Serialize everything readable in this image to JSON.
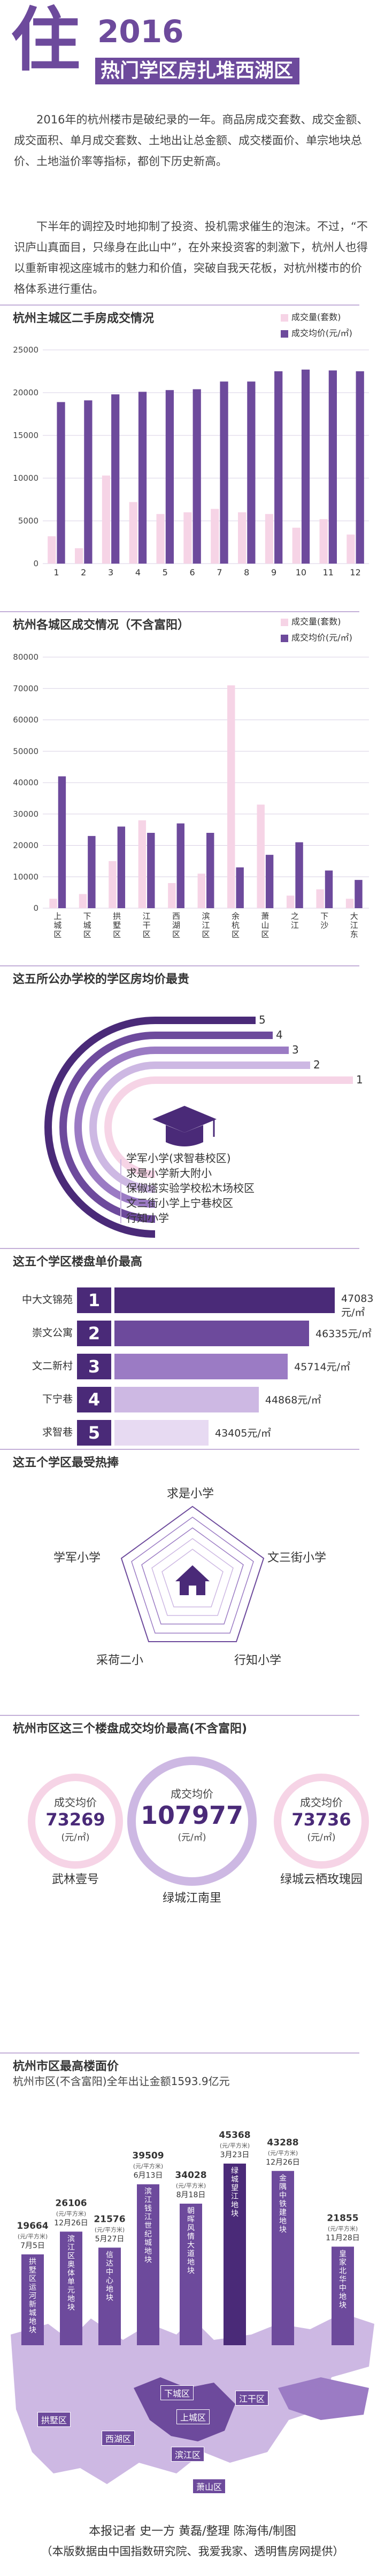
{
  "header": {
    "char": "住",
    "year": "2016",
    "title": "热门学区房扎堆西湖区"
  },
  "intro": {
    "p1": "2016年的杭州楼市是破纪录的一年。商品房成交套数、成交金额、成交面积、单月成交套数、土地出让总金额、成交楼面价、单宗地块总价、土地溢价率等指标，都创下历史新高。",
    "p2": "下半年的调控及时地抑制了投资、投机需求催生的泡沫。不过，“不识庐山真面目，只缘身在此山中”，在外来投资客的刺激下，杭州人也得以重新审视这座城市的魅力和价值，突破自我天花板，对杭州楼市的价格体系进行重估。"
  },
  "colors": {
    "purple": "#6d4a9c",
    "dark": "#4a2a78",
    "pink": "#f6d4e6",
    "light": "#cdb8e3"
  },
  "section1": {
    "title": "杭州主城区二手房成交情况",
    "legend": [
      "成交量(套数)",
      "成交均价(元/㎡)"
    ]
  },
  "section2": {
    "title": "杭州各城区成交情况（不含富阳）",
    "legend": [
      "成交量(套数)",
      "成交均价(元/㎡)"
    ]
  },
  "section3": {
    "title": "这五所公办学校的学区房均价最贵",
    "schools": [
      "学军小学(求智巷校区)",
      "求是小学新大附小",
      "保俶塔实验学校松木场校区",
      "文三街小学上宁巷校区",
      "行知小学"
    ]
  },
  "section4": {
    "title": "这五个学区楼盘单价最高",
    "rows": [
      {
        "name": "中大文锦苑",
        "rank": "1",
        "value": "47083元/㎡"
      },
      {
        "name": "崇文公寓",
        "rank": "2",
        "value": "46335元/㎡"
      },
      {
        "name": "文二新村",
        "rank": "3",
        "value": "45714元/㎡"
      },
      {
        "name": "下宁巷",
        "rank": "4",
        "value": "44868元/㎡"
      },
      {
        "name": "求智巷",
        "rank": "5",
        "value": "43405元/㎡"
      }
    ]
  },
  "section5": {
    "title": "这五个学区最受热捧",
    "labels": [
      "求是小学",
      "文三街小学",
      "行知小学",
      "采荷二小",
      "学军小学"
    ]
  },
  "section6": {
    "title": "杭州市区这三个楼盘成交均价最高(不含富阳)",
    "left": {
      "label": "成交均价",
      "num": "73269",
      "unit": "(元/㎡)",
      "name": "武林壹号"
    },
    "center": {
      "label": "成交均价",
      "num": "107977",
      "unit": "(元/㎡)",
      "name": "绿城江南里"
    },
    "right": {
      "label": "成交均价",
      "num": "73736",
      "unit": "(元/㎡)",
      "name": "绿城云栖玫瑰园"
    }
  },
  "section7": {
    "title": "杭州市区最高楼面价",
    "subtitle": "杭州市区(不含富阳)全年出让金额1593.9亿元",
    "unit": "(元/平方米)",
    "plots": [
      {
        "price": "19664",
        "date": "7月5日",
        "name": "拱墅区运河新城地块"
      },
      {
        "price": "26106",
        "date": "12月26日",
        "name": "滨江区奥体单元地块"
      },
      {
        "price": "21576",
        "date": "5月27日",
        "name": "信达中心地块"
      },
      {
        "price": "39509",
        "date": "6月13日",
        "name": "滨江钱江世纪城地块"
      },
      {
        "price": "34028",
        "date": "8月18日",
        "name": "朝晖风情大道地块"
      },
      {
        "price": "45368",
        "date": "3月23日",
        "name": "绿城望江地块"
      },
      {
        "price": "43288",
        "date": "12月26日",
        "name": "金隅中铁建地块"
      },
      {
        "price": "21855",
        "date": "11月28日",
        "name": "皇家北华中地块"
      }
    ],
    "districts": [
      "拱墅区",
      "下城区",
      "西湖区",
      "上城区",
      "江干区",
      "滨江区",
      "萧山区"
    ]
  },
  "credits": {
    "line1": "本报记者  史一方  黄磊/整理  陈海伟/制图",
    "line2": "（本版数据由中国指数研究院、我爱我家、透明售房网提供）"
  },
  "chart_data": [
    {
      "type": "bar",
      "title": "杭州主城区二手房成交情况",
      "categories": [
        "1",
        "2",
        "3",
        "4",
        "5",
        "6",
        "7",
        "8",
        "9",
        "10",
        "11",
        "12"
      ],
      "ylim": [
        0,
        25000
      ],
      "yticks": [
        0,
        5000,
        10000,
        15000,
        20000,
        25000
      ],
      "series": [
        {
          "name": "成交量(套数)",
          "values": [
            3200,
            1800,
            10300,
            7200,
            5800,
            6000,
            6400,
            6000,
            5800,
            4200,
            5200,
            3400
          ]
        },
        {
          "name": "成交均价(元/㎡)",
          "values": [
            18900,
            19100,
            19800,
            20100,
            20300,
            20400,
            21300,
            21300,
            22500,
            22700,
            22600,
            22500
          ]
        }
      ]
    },
    {
      "type": "bar",
      "title": "杭州各城区成交情况（不含富阳）",
      "categories": [
        "上城区",
        "下城区",
        "拱墅区",
        "江干区",
        "西湖区",
        "滨江区",
        "余杭区",
        "萧山区",
        "之江",
        "下沙",
        "大江东"
      ],
      "ylim": [
        0,
        80000
      ],
      "yticks": [
        0,
        10000,
        20000,
        30000,
        40000,
        50000,
        60000,
        70000,
        80000
      ],
      "series": [
        {
          "name": "成交量(套数)",
          "values": [
            3000,
            4500,
            15000,
            28000,
            8000,
            11000,
            71000,
            33000,
            4000,
            6000,
            3000
          ]
        },
        {
          "name": "成交均价(元/㎡)",
          "values": [
            42000,
            23000,
            26000,
            24000,
            27000,
            24000,
            13000,
            17000,
            21000,
            12000,
            9000
          ]
        }
      ]
    },
    {
      "type": "bar",
      "title": "这五个学区楼盘单价最高",
      "categories": [
        "中大文锦苑",
        "崇文公寓",
        "文二新村",
        "下宁巷",
        "求智巷"
      ],
      "values": [
        47083,
        46335,
        45714,
        44868,
        43405
      ]
    },
    {
      "type": "bar",
      "title": "杭州市区最高楼面价",
      "categories": [
        "7月5日",
        "12月26日",
        "5月27日",
        "6月13日",
        "8月18日",
        "3月23日",
        "12月26日",
        "11月28日"
      ],
      "values": [
        19664,
        26106,
        21576,
        39509,
        34028,
        45368,
        43288,
        21855
      ]
    }
  ]
}
